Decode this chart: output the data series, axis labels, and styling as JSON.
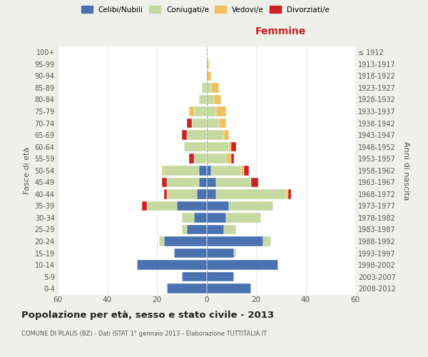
{
  "age_groups": [
    "0-4",
    "5-9",
    "10-14",
    "15-19",
    "20-24",
    "25-29",
    "30-34",
    "35-39",
    "40-44",
    "45-49",
    "50-54",
    "55-59",
    "60-64",
    "65-69",
    "70-74",
    "75-79",
    "80-84",
    "85-89",
    "90-94",
    "95-99",
    "100+"
  ],
  "birth_years": [
    "2008-2012",
    "2003-2007",
    "1998-2002",
    "1993-1997",
    "1988-1992",
    "1983-1987",
    "1978-1982",
    "1973-1977",
    "1968-1972",
    "1963-1967",
    "1958-1962",
    "1953-1957",
    "1948-1952",
    "1943-1947",
    "1938-1942",
    "1933-1937",
    "1928-1932",
    "1923-1927",
    "1918-1922",
    "1913-1917",
    "≤ 1912"
  ],
  "colors": {
    "celibi": "#4a72b0",
    "coniugati": "#c5d9a0",
    "vedovi": "#f0c060",
    "divorziati": "#cc2222"
  },
  "male": {
    "celibi": [
      16,
      10,
      28,
      13,
      17,
      8,
      5,
      12,
      4,
      3,
      3,
      0,
      0,
      0,
      0,
      0,
      0,
      0,
      0,
      0,
      0
    ],
    "coniugati": [
      0,
      0,
      0,
      0,
      2,
      2,
      5,
      12,
      12,
      13,
      14,
      5,
      9,
      8,
      6,
      5,
      3,
      2,
      0,
      0,
      0
    ],
    "vedovi": [
      0,
      0,
      0,
      0,
      0,
      0,
      0,
      0,
      0,
      0,
      1,
      0,
      0,
      0,
      0,
      2,
      0,
      0,
      0,
      0,
      0
    ],
    "divorziati": [
      0,
      0,
      0,
      0,
      0,
      0,
      0,
      2,
      1,
      2,
      0,
      2,
      0,
      2,
      2,
      0,
      0,
      0,
      0,
      0,
      0
    ]
  },
  "female": {
    "nubili": [
      18,
      11,
      29,
      11,
      23,
      7,
      8,
      9,
      4,
      4,
      2,
      0,
      0,
      0,
      0,
      0,
      0,
      0,
      0,
      0,
      0
    ],
    "coniugate": [
      0,
      0,
      0,
      1,
      3,
      5,
      14,
      18,
      28,
      14,
      12,
      8,
      9,
      7,
      5,
      4,
      3,
      2,
      0,
      0,
      0
    ],
    "vedove": [
      0,
      0,
      0,
      0,
      0,
      0,
      0,
      0,
      1,
      0,
      1,
      2,
      1,
      2,
      3,
      4,
      3,
      3,
      2,
      1,
      0
    ],
    "divorziate": [
      0,
      0,
      0,
      0,
      0,
      0,
      0,
      0,
      1,
      3,
      2,
      1,
      2,
      0,
      0,
      0,
      0,
      0,
      0,
      0,
      0
    ]
  },
  "xlim": 60,
  "title": "Popolazione per età, sesso e stato civile - 2013",
  "subtitle": "COMUNE DI PLAUS (BZ) - Dati ISTAT 1° gennaio 2013 - Elaborazione TUTTITALIA.IT",
  "ylabel_left": "Fasce di età",
  "ylabel_right": "Anni di nascita",
  "xlabel_right": "Femmine",
  "bg_color": "#f0f0eb",
  "plot_bg": "#ffffff"
}
